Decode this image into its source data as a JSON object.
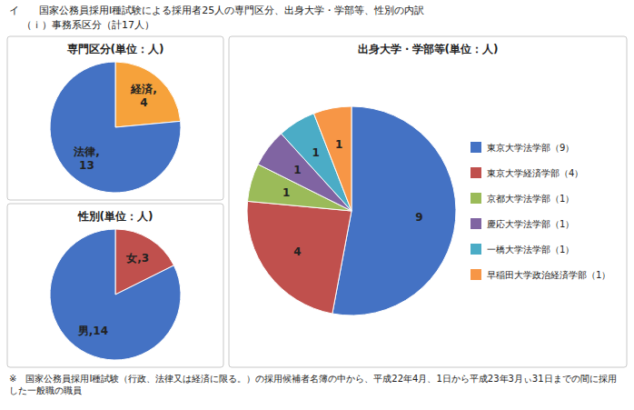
{
  "title": "イ　　国家公務員採用Ⅰ種試験による採用者25人の専門区分、出身大学・学部等、性別の内訳",
  "subtitle": "（ｉ）事務系区分（計17人）",
  "annotations": [
    "※　国家公務員採用Ⅰ種試験（行政、法律又は経済に限る。）の採用候補者名簿の中から、平成22年4月、1日から平成23年3月ぃ31日までの間に採用した一般職の職員"
  ],
  "chart_data": [
    {
      "type": "pie",
      "title": "専門区分(単位：人)",
      "values": [
        4,
        13
      ],
      "value_labels": [
        "経済,\n4",
        "法律,\n13"
      ],
      "colors": [
        "#F6A23B",
        "#4472C4"
      ]
    },
    {
      "type": "pie",
      "title": "性別(単位：人)",
      "values": [
        3,
        14
      ],
      "value_labels": [
        "女,3",
        "男,14"
      ],
      "colors": [
        "#C0504D",
        "#4472C4"
      ]
    },
    {
      "type": "pie",
      "title": "出身大学・学部等(単位：人)",
      "categories": [
        "東京大学法学部（9）",
        "東京大学経済学部（4）",
        "京都大学法学部（1）",
        "慶応大学法学部（1）",
        "一橋大学法学部（1）",
        "早稲田大学政治経済学部（1）"
      ],
      "values": [
        9,
        4,
        1,
        1,
        1,
        1
      ],
      "colors": [
        "#4472C4",
        "#C0504D",
        "#9BBB59",
        "#8064A2",
        "#4BACC6",
        "#F79646"
      ],
      "data_labels": true,
      "legend": "right"
    }
  ]
}
